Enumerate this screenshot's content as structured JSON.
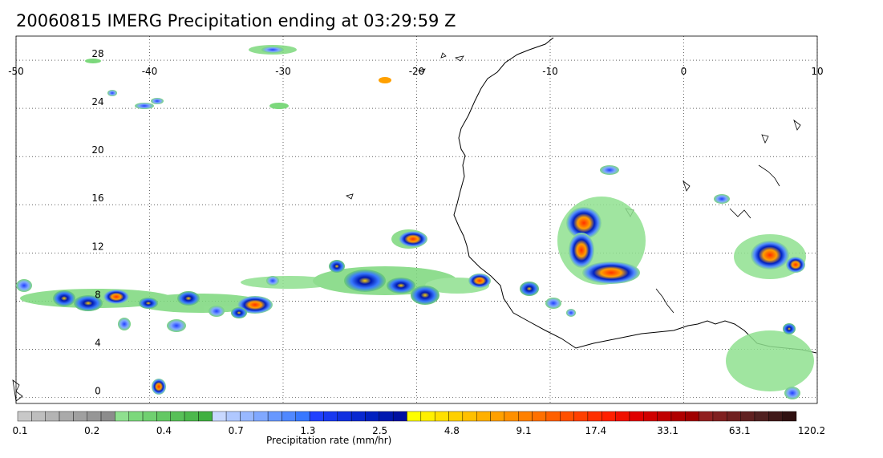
{
  "title": "20060815 IMERG Precipitation ending at 03:29:59 Z",
  "map": {
    "lon_ticks": [
      "-50",
      "-40",
      "-30",
      "-20",
      "-10",
      "0",
      "10"
    ],
    "lat_ticks": [
      "28",
      "24",
      "20",
      "16",
      "12",
      "8",
      "4",
      "0"
    ],
    "lon_range": [
      -50,
      10
    ],
    "lat_range": [
      -0.5,
      30
    ],
    "grid": "dotted"
  },
  "colorbar": {
    "title": "Precipitation rate (mm/hr)",
    "labels": [
      "0.1",
      "0.2",
      "0.4",
      "0.7",
      "1.3",
      "2.5",
      "4.8",
      "9.1",
      "17.4",
      "33.1",
      "63.1",
      "120.2"
    ],
    "colors": [
      "#c8c8c8",
      "#bebebe",
      "#b4b4b4",
      "#aaaaaa",
      "#a0a0a0",
      "#969696",
      "#8c8c8c",
      "#8fe08f",
      "#7cd87c",
      "#70d070",
      "#64c864",
      "#58c058",
      "#4cb84c",
      "#40b040",
      "#c8d8ff",
      "#b0c8ff",
      "#98b8ff",
      "#80a8ff",
      "#6898ff",
      "#5088ff",
      "#3878ff",
      "#2040ff",
      "#1838f0",
      "#1030e0",
      "#0828d0",
      "#0020c0",
      "#0018b0",
      "#0010a0",
      "#ffff00",
      "#fff000",
      "#ffe000",
      "#ffd000",
      "#ffc000",
      "#ffb000",
      "#ffa000",
      "#ff9000",
      "#ff8000",
      "#ff7000",
      "#ff6000",
      "#ff5000",
      "#ff4000",
      "#ff3000",
      "#ff2000",
      "#f01000",
      "#e00000",
      "#d00000",
      "#c00000",
      "#b00000",
      "#a00000",
      "#902020",
      "#802020",
      "#702020",
      "#602020",
      "#502020",
      "#401818",
      "#301010"
    ]
  }
}
